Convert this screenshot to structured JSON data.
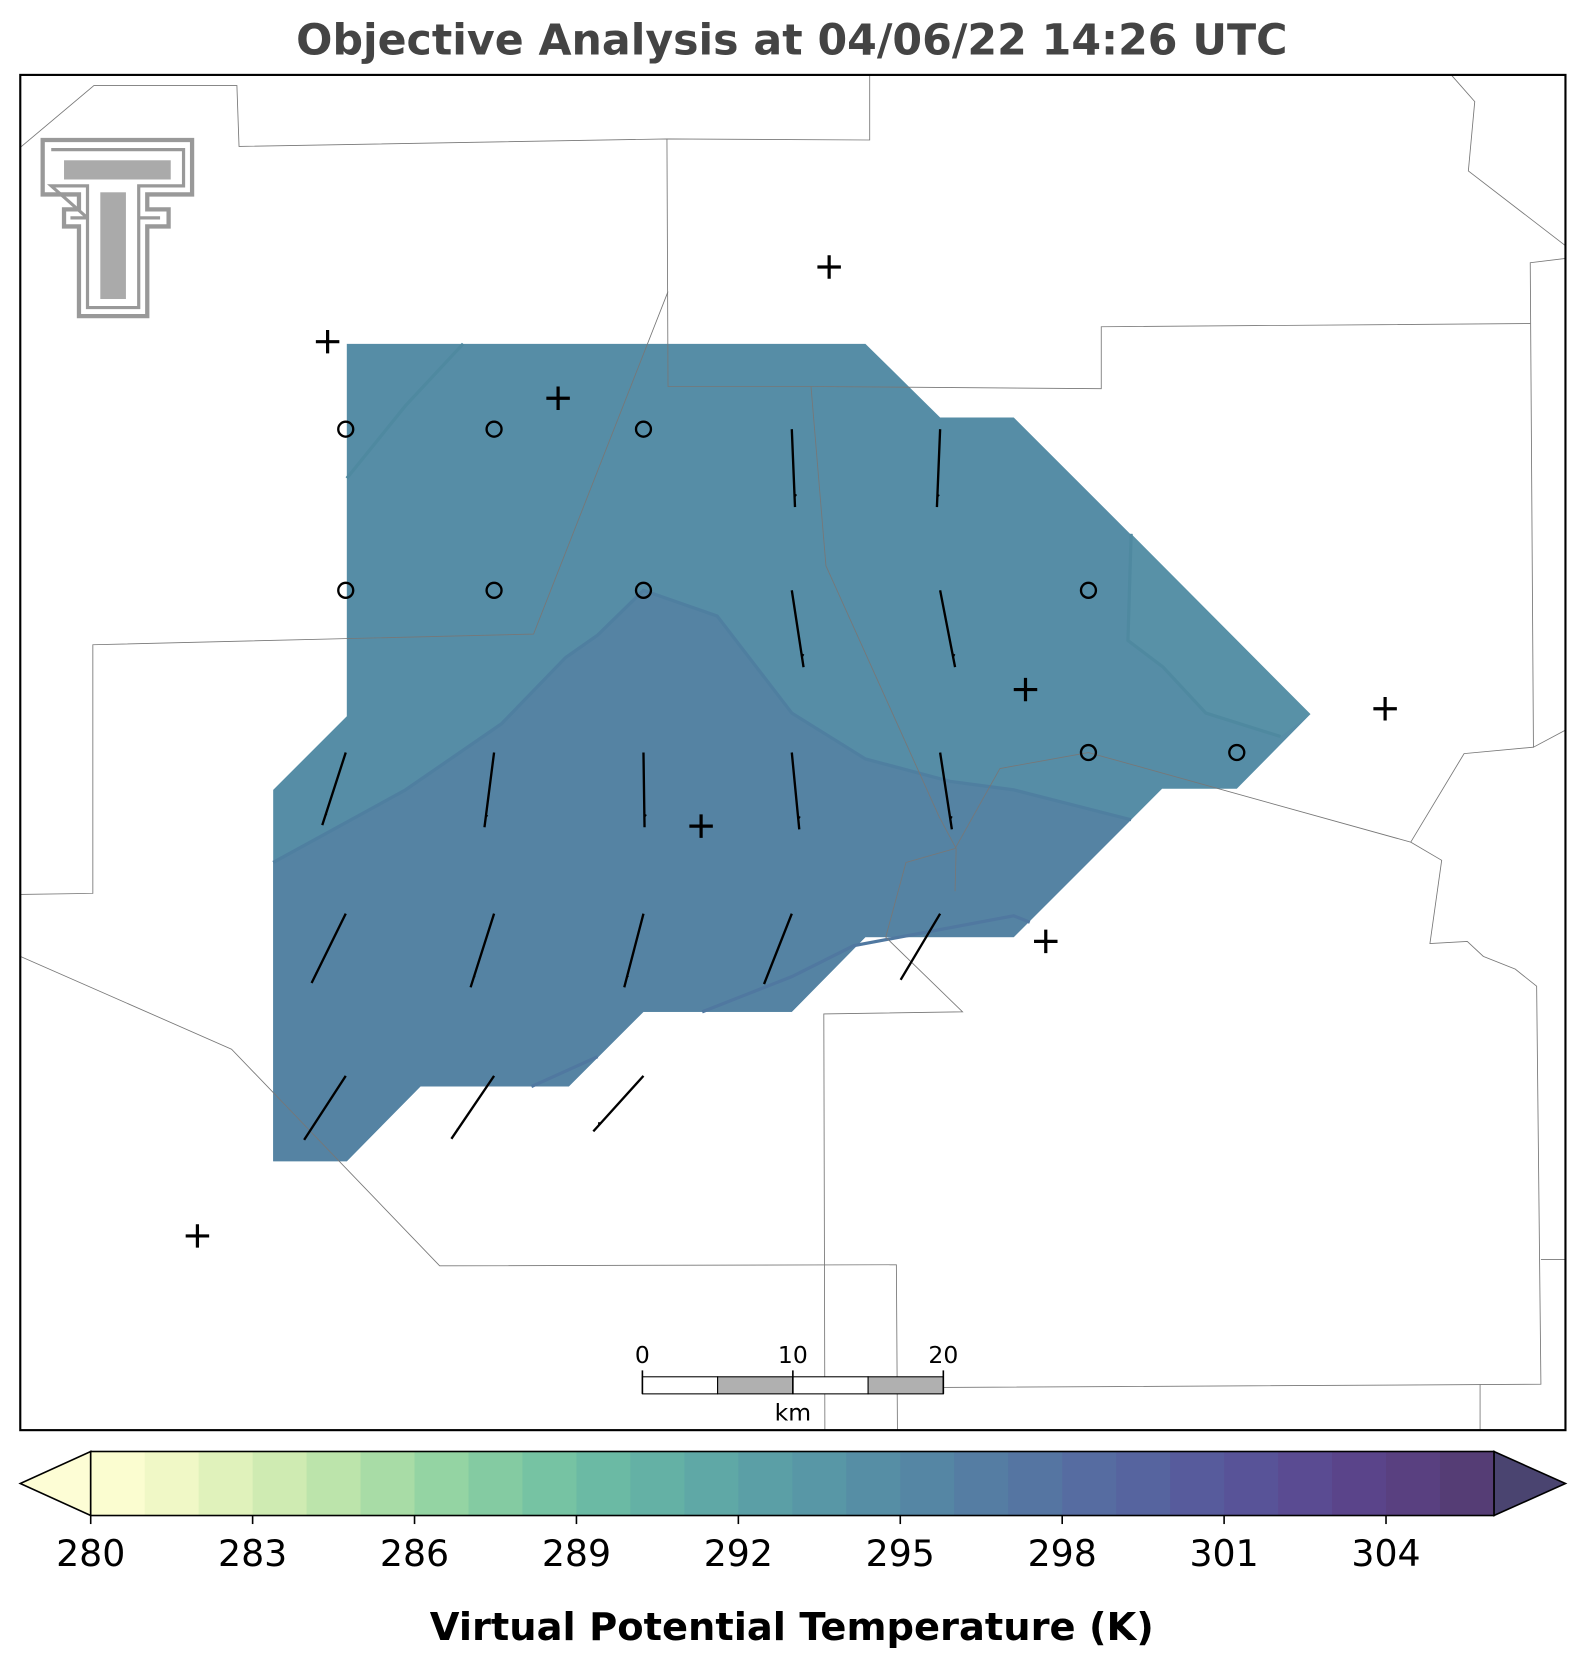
{
  "title": "Objective Analysis at 04/06/22 14:26 UTC",
  "scale_bar": {
    "ticks": [
      0,
      10,
      20
    ],
    "unit": "km"
  },
  "colorbar": {
    "label": "Virtual Potential Temperature (K)",
    "levels": [
      280,
      281,
      282,
      283,
      284,
      285,
      286,
      287,
      288,
      289,
      290,
      291,
      292,
      293,
      294,
      295,
      296,
      297,
      298,
      299,
      300,
      301,
      302,
      303,
      304,
      305,
      306
    ],
    "colors": [
      "#fbfdd0",
      "#f0f8c6",
      "#e0f2bb",
      "#cfebb2",
      "#bce4ab",
      "#a8dca6",
      "#94d4a3",
      "#84cba2",
      "#76c3a3",
      "#6bbaa4",
      "#64b1a5",
      "#5fa8a6",
      "#5b9fa6",
      "#5897a6",
      "#568ea5",
      "#5586a4",
      "#557da3",
      "#5575a2",
      "#566ca1",
      "#56649f",
      "#575b9c",
      "#585398",
      "#5a4b92",
      "#5a448a",
      "#594080",
      "#553d75"
    ],
    "under_color": "#fdfdd5",
    "over_color": "#4a4470",
    "ticks": [
      280,
      283,
      286,
      289,
      292,
      295,
      298,
      301,
      304
    ]
  }
}
